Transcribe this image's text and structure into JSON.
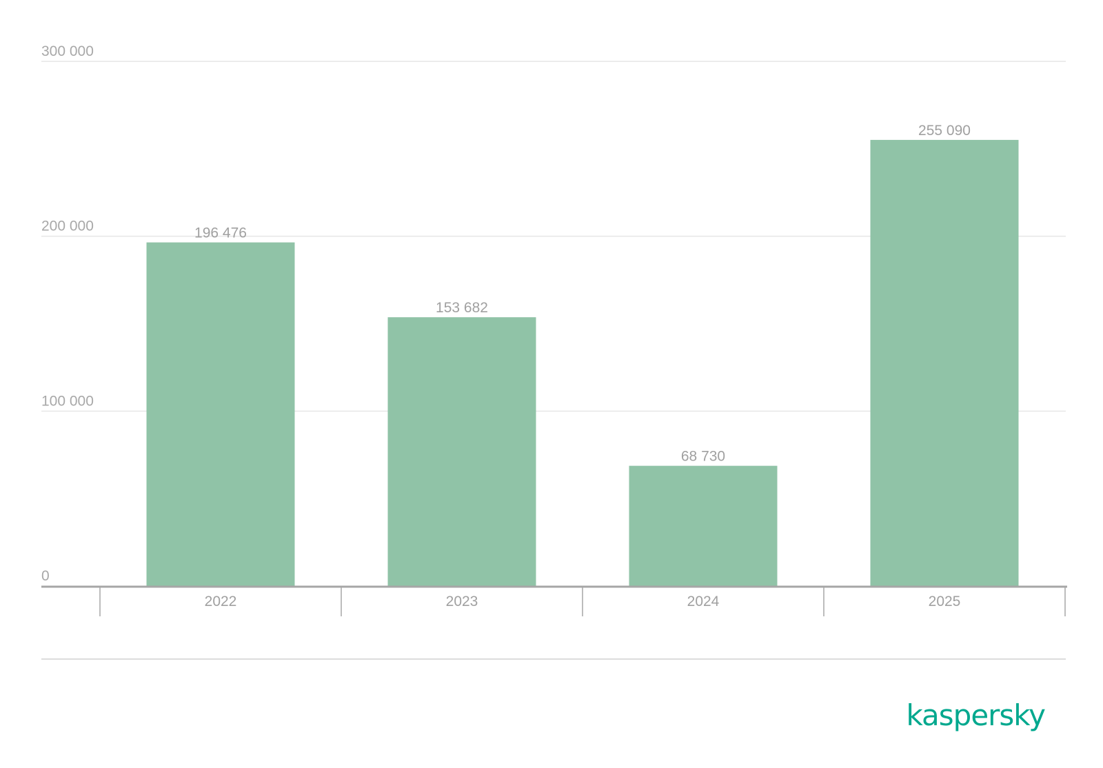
{
  "chart_data": {
    "type": "bar",
    "categories": [
      "2022",
      "2023",
      "2024",
      "2025"
    ],
    "values": [
      196476,
      153682,
      68730,
      255090
    ],
    "value_labels": [
      "196 476",
      "153 682",
      "68 730",
      "255 090"
    ],
    "yticks": [
      0,
      100000,
      200000,
      300000
    ],
    "ytick_labels": [
      "0",
      "100 000",
      "200 000",
      "300 000"
    ],
    "ylim": [
      0,
      300000
    ],
    "grid": true,
    "title": "",
    "xlabel": "",
    "ylabel": ""
  },
  "colors": {
    "bar": "#90c3a7",
    "grid": "#e6e6e6",
    "axis": "#a6a6a6",
    "logo": "#00a88e"
  },
  "logo": {
    "text": "kaspersky"
  }
}
